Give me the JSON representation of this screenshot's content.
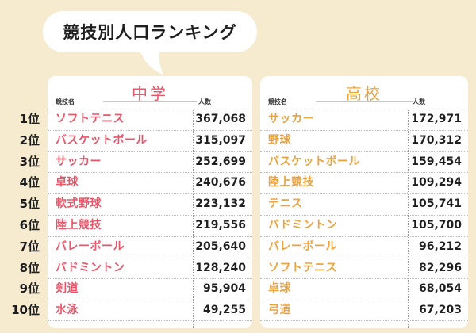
{
  "title": "競技別人口ランキング",
  "ranks": [
    "1位",
    "2位",
    "3位",
    "4位",
    "5位",
    "6位",
    "7位",
    "8位",
    "9位",
    "10位"
  ],
  "middle_school": {
    "heading": "中学",
    "col_sport": "競技名",
    "col_count": "人数",
    "rows": [
      {
        "sport": "ソフトテニス",
        "count": "367,068"
      },
      {
        "sport": "バスケットボール",
        "count": "315,097"
      },
      {
        "sport": "サッカー",
        "count": "252,699"
      },
      {
        "sport": "卓球",
        "count": "240,676"
      },
      {
        "sport": "軟式野球",
        "count": "223,132"
      },
      {
        "sport": "陸上競技",
        "count": "219,556"
      },
      {
        "sport": "バレーボール",
        "count": "205,640"
      },
      {
        "sport": "バドミントン",
        "count": "128,240"
      },
      {
        "sport": "剣道",
        "count": "95,904"
      },
      {
        "sport": "水泳",
        "count": "49,255"
      }
    ]
  },
  "high_school": {
    "heading": "高校",
    "col_sport": "競技名",
    "col_count": "人数",
    "rows": [
      {
        "sport": "サッカー",
        "count": "172,971"
      },
      {
        "sport": "野球",
        "count": "170,312"
      },
      {
        "sport": "バスケットボール",
        "count": "159,454"
      },
      {
        "sport": "陸上競技",
        "count": "109,294"
      },
      {
        "sport": "テニス",
        "count": "105,741"
      },
      {
        "sport": "バドミントン",
        "count": "105,700"
      },
      {
        "sport": "バレーボール",
        "count": "96,212"
      },
      {
        "sport": "ソフトテニス",
        "count": "82,296"
      },
      {
        "sport": "卓球",
        "count": "68,054"
      },
      {
        "sport": "弓道",
        "count": "67,203"
      }
    ]
  },
  "colors": {
    "background": "#f6ebcf",
    "middle_accent": "#e8566a",
    "high_accent": "#eba33f"
  }
}
